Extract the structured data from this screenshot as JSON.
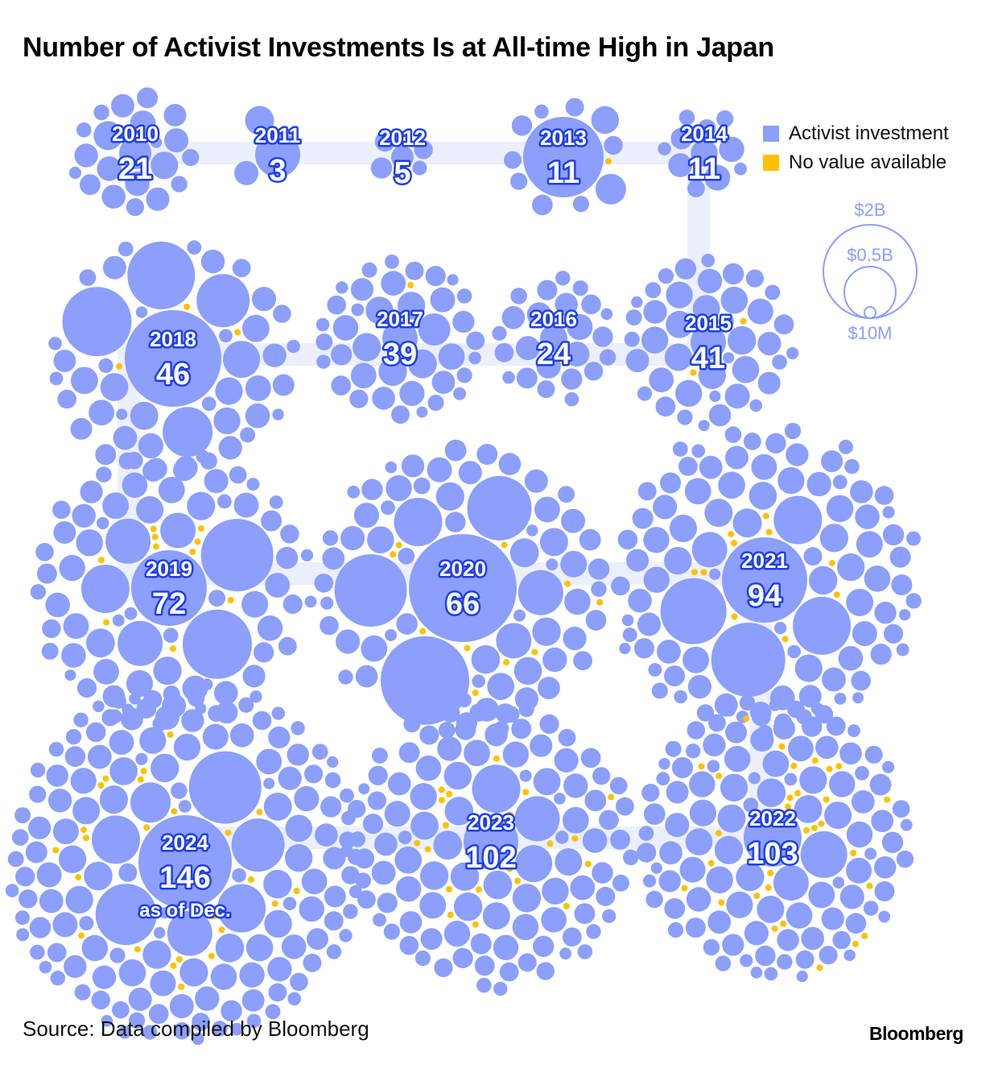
{
  "title": "Number of Activist Investments Is at All-time High in Japan",
  "legend": {
    "activist": "Activist investment",
    "no_value": "No value available"
  },
  "size_scale": [
    "$2B",
    "$0.5B",
    "$10M"
  ],
  "source": "Source: Data compiled by Bloomberg",
  "logo": "Bloomberg",
  "colors": {
    "bubble": "#8c9ffb",
    "no_value": "#fcc200",
    "path": "#eceffd",
    "label_stroke": "#1f3fe6"
  },
  "chart_data": {
    "type": "bubble-cluster",
    "title": "Number of Activist Investments Is at All-time High in Japan",
    "clusters": [
      {
        "year": "2010",
        "count": "21",
        "no_value_count": 0
      },
      {
        "year": "2011",
        "count": "3",
        "no_value_count": 0
      },
      {
        "year": "2012",
        "count": "5",
        "no_value_count": 0
      },
      {
        "year": "2013",
        "count": "11",
        "no_value_count": 1
      },
      {
        "year": "2014",
        "count": "11",
        "no_value_count": 0
      },
      {
        "year": "2015",
        "count": "41",
        "no_value_count": 2
      },
      {
        "year": "2016",
        "count": "24",
        "no_value_count": 0
      },
      {
        "year": "2017",
        "count": "39",
        "no_value_count": 1
      },
      {
        "year": "2018",
        "count": "46",
        "no_value_count": 3
      },
      {
        "year": "2019",
        "count": "72",
        "no_value_count": 10
      },
      {
        "year": "2020",
        "count": "66",
        "no_value_count": 10
      },
      {
        "year": "2021",
        "count": "94",
        "no_value_count": 10
      },
      {
        "year": "2022",
        "count": "103",
        "no_value_count": 30
      },
      {
        "year": "2023",
        "count": "102",
        "no_value_count": 20
      },
      {
        "year": "2024",
        "count": "146",
        "no_value_count": 25,
        "note": "as of Dec."
      }
    ]
  }
}
